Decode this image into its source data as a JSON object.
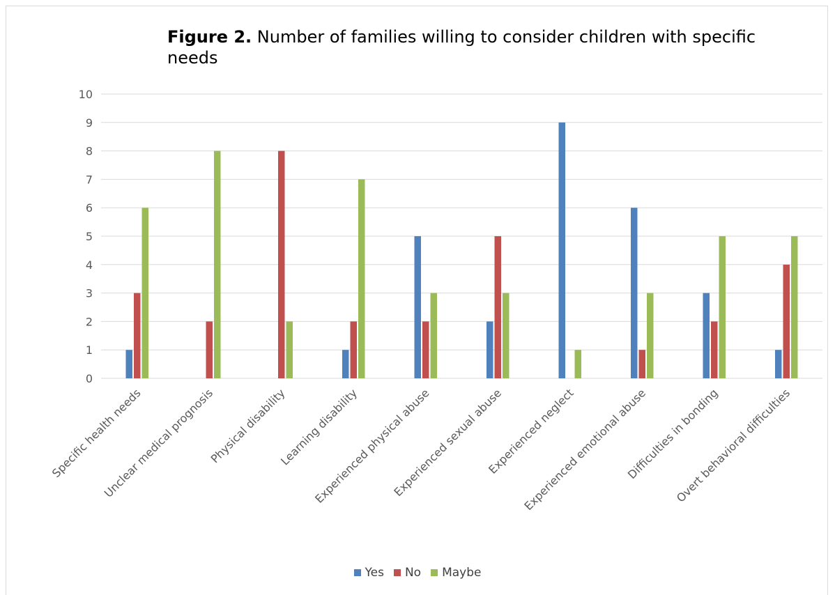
{
  "chart_data": {
    "type": "bar",
    "title_bold": "Figure 2.",
    "title_rest": " Number of families willing to consider children with specific needs",
    "categories": [
      "Specific health needs",
      "Unclear medical prognosis",
      "Physical disability",
      "Learning disability",
      "Experienced physical abuse",
      "Experienced sexual abuse",
      "Experienced neglect",
      "Experienced emotional abuse",
      "Difficulties in bonding",
      "Overt behavioral difficulties"
    ],
    "series": [
      {
        "name": "Yes",
        "color": "#4F81BD",
        "values": [
          1,
          0,
          0,
          1,
          5,
          2,
          9,
          6,
          3,
          1
        ]
      },
      {
        "name": "No",
        "color": "#C0504D",
        "values": [
          3,
          2,
          8,
          2,
          2,
          5,
          0,
          1,
          2,
          4
        ]
      },
      {
        "name": "Maybe",
        "color": "#9BBB59",
        "values": [
          6,
          8,
          2,
          7,
          3,
          3,
          1,
          3,
          5,
          5
        ]
      }
    ],
    "ylim": [
      0,
      10
    ],
    "yticks": [
      "0",
      "1",
      "2",
      "3",
      "4",
      "5",
      "6",
      "7",
      "8",
      "9",
      "10"
    ],
    "grid": true,
    "legend_position": "bottom"
  }
}
